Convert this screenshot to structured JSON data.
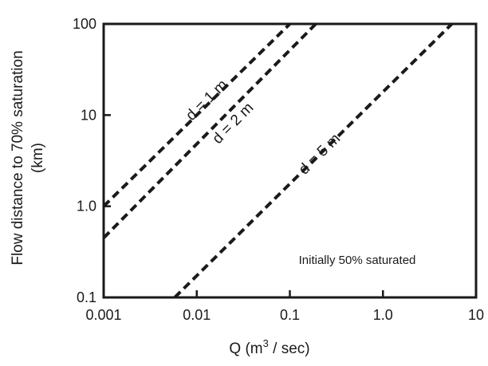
{
  "chart_data": {
    "type": "line",
    "xscale": "log",
    "yscale": "log",
    "xlim": [
      0.001,
      10
    ],
    "ylim": [
      0.1,
      100
    ],
    "xticks": [
      {
        "value": 0.001,
        "label": "0.001"
      },
      {
        "value": 0.01,
        "label": "0.01"
      },
      {
        "value": 0.1,
        "label": "0.1"
      },
      {
        "value": 1,
        "label": "1.0"
      },
      {
        "value": 10,
        "label": "10"
      }
    ],
    "yticks": [
      {
        "value": 0.1,
        "label": "0.1"
      },
      {
        "value": 1,
        "label": "1.0"
      },
      {
        "value": 10,
        "label": "10"
      },
      {
        "value": 100,
        "label": "100"
      }
    ],
    "xlabel_main": "Q (m",
    "xlabel_sup": "3",
    "xlabel_rest": " / sec)",
    "ylabel_line1": "Flow distance to 70% saturation",
    "ylabel_line2": "(km)",
    "annotation": "Initially 50% saturated",
    "grid": false,
    "series": [
      {
        "name": "d = 1 m",
        "x": [
          0.001,
          0.1
        ],
        "y": [
          1.0,
          100
        ]
      },
      {
        "name": "d = 2 m",
        "x": [
          0.001,
          0.19
        ],
        "y": [
          0.45,
          100
        ]
      },
      {
        "name": "d = 5 m",
        "x": [
          0.0058,
          5.5
        ],
        "y": [
          0.1,
          100
        ]
      }
    ]
  }
}
